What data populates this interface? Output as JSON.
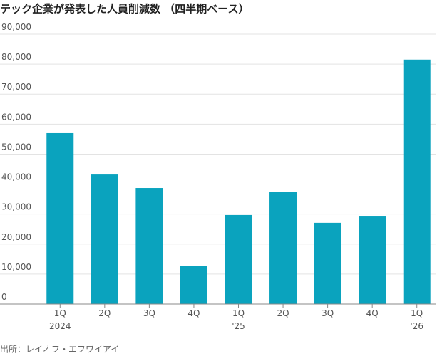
{
  "chart_data": {
    "type": "bar",
    "title": "テック企業が発表した人員削減数 （四半期ベース）",
    "categories": [
      "1Q",
      "2Q",
      "3Q",
      "4Q",
      "1Q",
      "2Q",
      "3Q",
      "4Q",
      "1Q"
    ],
    "category_years": [
      "2024",
      null,
      null,
      null,
      "'25",
      null,
      null,
      null,
      "'26"
    ],
    "values": [
      57000,
      43200,
      38700,
      12800,
      29700,
      37300,
      27100,
      29200,
      81500
    ],
    "color": "#0aa3be",
    "ylim": [
      0,
      90000
    ],
    "yticks": [
      0,
      {
        "value": 10000,
        "label": "10,000"
      },
      {
        "value": 20000,
        "label": "20,000"
      },
      {
        "value": 30000,
        "label": "30,000"
      },
      {
        "value": 40000,
        "label": "40,000"
      },
      {
        "value": 50000,
        "label": "50,000"
      },
      {
        "value": 60000,
        "label": "60,000"
      },
      {
        "value": 70000,
        "label": "70,000"
      },
      {
        "value": 80000,
        "label": "80,000"
      },
      {
        "value": 90000,
        "label": "90,000"
      }
    ],
    "grid": true,
    "source": "出所：レイオフ・エフワイアイ"
  }
}
